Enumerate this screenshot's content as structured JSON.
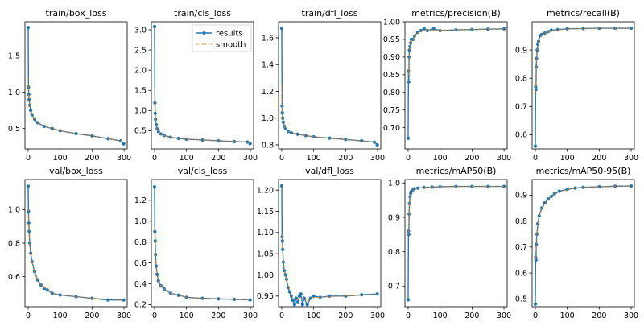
{
  "legend": {
    "results": "results",
    "smooth": "smooth"
  },
  "colors": {
    "results": "#1f77b4",
    "smooth": "#ff7f0e"
  },
  "chart_data": [
    {
      "type": "line",
      "title": "train/box_loss",
      "xlim": [
        -10,
        310
      ],
      "ylim": [
        0.22,
        1.97
      ],
      "xticks": [
        0,
        100,
        200,
        300
      ],
      "yticks": [
        0.5,
        1.0,
        1.5
      ],
      "ytick_labels": [
        "0.5",
        "1.0",
        "1.5"
      ],
      "x": [
        0,
        1,
        2,
        3,
        5,
        8,
        12,
        20,
        30,
        50,
        75,
        100,
        150,
        200,
        250,
        290,
        299
      ],
      "results": [
        1.89,
        1.07,
        0.97,
        0.9,
        0.82,
        0.75,
        0.69,
        0.63,
        0.58,
        0.53,
        0.5,
        0.47,
        0.43,
        0.4,
        0.36,
        0.33,
        0.29
      ],
      "smooth": [
        1.2,
        1.06,
        0.97,
        0.9,
        0.82,
        0.75,
        0.69,
        0.63,
        0.58,
        0.53,
        0.5,
        0.47,
        0.43,
        0.4,
        0.36,
        0.33,
        0.31
      ]
    },
    {
      "type": "line",
      "title": "train/cls_loss",
      "legend": "top-right",
      "xlim": [
        -10,
        310
      ],
      "ylim": [
        0.05,
        3.2
      ],
      "xticks": [
        0,
        100,
        200,
        300
      ],
      "yticks": [
        0.5,
        1.0,
        1.5,
        2.0,
        2.5,
        3.0
      ],
      "ytick_labels": [
        "0.5",
        "1.0",
        "1.5",
        "2.0",
        "2.5",
        "3.0"
      ],
      "x": [
        0,
        1,
        2,
        3,
        5,
        8,
        12,
        20,
        30,
        50,
        75,
        100,
        150,
        200,
        250,
        290,
        299
      ],
      "results": [
        3.08,
        1.19,
        0.93,
        0.78,
        0.65,
        0.55,
        0.48,
        0.42,
        0.38,
        0.34,
        0.31,
        0.29,
        0.27,
        0.25,
        0.23,
        0.22,
        0.18
      ],
      "smooth": [
        1.55,
        1.15,
        0.92,
        0.78,
        0.65,
        0.55,
        0.48,
        0.42,
        0.38,
        0.34,
        0.31,
        0.29,
        0.27,
        0.25,
        0.23,
        0.22,
        0.2
      ]
    },
    {
      "type": "line",
      "title": "train/dfl_loss",
      "xlim": [
        -10,
        310
      ],
      "ylim": [
        0.77,
        1.72
      ],
      "xticks": [
        0,
        100,
        200,
        300
      ],
      "yticks": [
        0.8,
        1.0,
        1.2,
        1.4,
        1.6
      ],
      "ytick_labels": [
        "0.8",
        "1.0",
        "1.2",
        "1.4",
        "1.6"
      ],
      "x": [
        0,
        1,
        2,
        3,
        5,
        8,
        12,
        20,
        30,
        50,
        75,
        100,
        150,
        200,
        250,
        290,
        299
      ],
      "results": [
        1.67,
        1.09,
        1.04,
        1.0,
        0.97,
        0.94,
        0.92,
        0.9,
        0.89,
        0.88,
        0.87,
        0.86,
        0.85,
        0.84,
        0.83,
        0.82,
        0.8
      ],
      "smooth": [
        1.25,
        1.08,
        1.03,
        1.0,
        0.97,
        0.94,
        0.92,
        0.9,
        0.89,
        0.88,
        0.87,
        0.86,
        0.85,
        0.84,
        0.83,
        0.82,
        0.81
      ]
    },
    {
      "type": "line",
      "title": "metrics/precision(B)",
      "xlim": [
        -10,
        310
      ],
      "ylim": [
        0.64,
        1.0
      ],
      "xticks": [
        0,
        100,
        200,
        300
      ],
      "yticks": [
        0.7,
        0.75,
        0.8,
        0.85,
        0.9,
        0.95,
        1.0
      ],
      "ytick_labels": [
        "0.70",
        "0.75",
        "0.80",
        "0.85",
        "0.90",
        "0.95",
        "1.00"
      ],
      "x": [
        0,
        1,
        2,
        3,
        4,
        6,
        8,
        10,
        15,
        20,
        30,
        40,
        50,
        60,
        80,
        100,
        150,
        200,
        250,
        300
      ],
      "results": [
        0.67,
        0.86,
        0.83,
        0.9,
        0.92,
        0.93,
        0.94,
        0.95,
        0.95,
        0.96,
        0.97,
        0.975,
        0.98,
        0.975,
        0.98,
        0.975,
        0.977,
        0.978,
        0.979,
        0.98
      ],
      "smooth": [
        0.85,
        0.86,
        0.86,
        0.89,
        0.91,
        0.93,
        0.94,
        0.945,
        0.95,
        0.96,
        0.968,
        0.972,
        0.976,
        0.976,
        0.977,
        0.976,
        0.977,
        0.978,
        0.979,
        0.98
      ]
    },
    {
      "type": "line",
      "title": "metrics/recall(B)",
      "xlim": [
        -10,
        310
      ],
      "ylim": [
        0.55,
        1.0
      ],
      "xticks": [
        0,
        100,
        200,
        300
      ],
      "yticks": [
        0.6,
        0.7,
        0.8,
        0.9
      ],
      "ytick_labels": [
        "0.6",
        "0.7",
        "0.8",
        "0.9"
      ],
      "x": [
        0,
        1,
        2,
        3,
        4,
        6,
        8,
        10,
        15,
        20,
        30,
        40,
        50,
        70,
        100,
        150,
        200,
        250,
        300
      ],
      "results": [
        0.56,
        0.77,
        0.76,
        0.84,
        0.87,
        0.9,
        0.92,
        0.93,
        0.95,
        0.955,
        0.96,
        0.965,
        0.97,
        0.972,
        0.975,
        0.976,
        0.977,
        0.977,
        0.977
      ],
      "smooth": [
        0.75,
        0.76,
        0.77,
        0.82,
        0.86,
        0.89,
        0.915,
        0.93,
        0.945,
        0.953,
        0.96,
        0.964,
        0.968,
        0.971,
        0.974,
        0.976,
        0.977,
        0.977,
        0.977
      ]
    },
    {
      "type": "line",
      "title": "val/box_loss",
      "xlim": [
        -10,
        310
      ],
      "ylim": [
        0.42,
        1.18
      ],
      "xticks": [
        0,
        100,
        200,
        300
      ],
      "yticks": [
        0.6,
        0.8,
        1.0
      ],
      "ytick_labels": [
        "0.6",
        "0.8",
        "1.0"
      ],
      "x": [
        0,
        1,
        2,
        3,
        5,
        8,
        12,
        20,
        30,
        40,
        50,
        60,
        75,
        100,
        150,
        200,
        250,
        299
      ],
      "results": [
        1.14,
        0.99,
        0.92,
        0.87,
        0.8,
        0.74,
        0.69,
        0.63,
        0.58,
        0.55,
        0.53,
        0.52,
        0.5,
        0.49,
        0.48,
        0.47,
        0.46,
        0.46
      ],
      "smooth": [
        1.0,
        0.97,
        0.91,
        0.86,
        0.8,
        0.74,
        0.69,
        0.63,
        0.58,
        0.55,
        0.535,
        0.52,
        0.5,
        0.49,
        0.48,
        0.47,
        0.465,
        0.46
      ]
    },
    {
      "type": "line",
      "title": "val/cls_loss",
      "xlim": [
        -10,
        310
      ],
      "ylim": [
        0.18,
        1.4
      ],
      "xticks": [
        0,
        100,
        200,
        300
      ],
      "yticks": [
        0.2,
        0.4,
        0.6,
        0.8,
        1.0,
        1.2
      ],
      "ytick_labels": [
        "0.2",
        "0.4",
        "0.6",
        "0.8",
        "1.0",
        "1.2"
      ],
      "x": [
        0,
        1,
        2,
        3,
        5,
        8,
        12,
        20,
        30,
        50,
        75,
        100,
        150,
        200,
        250,
        299
      ],
      "results": [
        1.33,
        0.9,
        0.81,
        0.68,
        0.57,
        0.49,
        0.43,
        0.38,
        0.35,
        0.31,
        0.29,
        0.27,
        0.26,
        0.255,
        0.25,
        0.245
      ],
      "smooth": [
        0.95,
        0.88,
        0.8,
        0.68,
        0.57,
        0.49,
        0.43,
        0.38,
        0.35,
        0.31,
        0.29,
        0.27,
        0.26,
        0.255,
        0.25,
        0.245
      ]
    },
    {
      "type": "line",
      "title": "val/dfl_loss",
      "xlim": [
        -10,
        310
      ],
      "ylim": [
        0.925,
        1.225
      ],
      "xticks": [
        0,
        100,
        200,
        300
      ],
      "yticks": [
        0.95,
        1.0,
        1.05,
        1.1,
        1.15,
        1.2
      ],
      "ytick_labels": [
        "0.95",
        "1.00",
        "1.05",
        "1.10",
        "1.15",
        "1.20"
      ],
      "x": [
        0,
        1,
        2,
        3,
        5,
        8,
        12,
        15,
        20,
        25,
        30,
        35,
        40,
        45,
        50,
        55,
        60,
        65,
        70,
        80,
        90,
        100,
        120,
        150,
        200,
        250,
        299
      ],
      "results": [
        1.21,
        1.09,
        1.08,
        1.06,
        1.03,
        1.01,
        1.0,
        0.99,
        0.97,
        0.96,
        0.95,
        0.94,
        0.93,
        0.945,
        0.935,
        0.95,
        0.955,
        0.93,
        0.945,
        0.93,
        0.945,
        0.95,
        0.947,
        0.95,
        0.95,
        0.953,
        0.955
      ],
      "smooth": [
        1.1,
        1.09,
        1.075,
        1.06,
        1.03,
        1.01,
        1.0,
        0.99,
        0.975,
        0.965,
        0.955,
        0.947,
        0.942,
        0.942,
        0.94,
        0.943,
        0.946,
        0.942,
        0.943,
        0.94,
        0.943,
        0.946,
        0.947,
        0.949,
        0.95,
        0.952,
        0.954
      ]
    },
    {
      "type": "line",
      "title": "metrics/mAP50(B)",
      "xlim": [
        -10,
        310
      ],
      "ylim": [
        0.64,
        1.01
      ],
      "xticks": [
        0,
        100,
        200,
        300
      ],
      "yticks": [
        0.7,
        0.8,
        0.9,
        1.0
      ],
      "ytick_labels": [
        "0.7",
        "0.8",
        "0.9",
        "1.0"
      ],
      "x": [
        0,
        1,
        2,
        3,
        4,
        6,
        8,
        10,
        15,
        20,
        30,
        50,
        75,
        100,
        150,
        200,
        250,
        300
      ],
      "results": [
        0.66,
        0.86,
        0.85,
        0.91,
        0.94,
        0.96,
        0.97,
        0.975,
        0.98,
        0.983,
        0.985,
        0.987,
        0.988,
        0.989,
        0.99,
        0.99,
        0.99,
        0.99
      ],
      "smooth": [
        0.85,
        0.86,
        0.86,
        0.9,
        0.93,
        0.955,
        0.965,
        0.972,
        0.978,
        0.982,
        0.985,
        0.987,
        0.988,
        0.989,
        0.99,
        0.99,
        0.99,
        0.99
      ]
    },
    {
      "type": "line",
      "title": "metrics/mAP50-95(B)",
      "xlim": [
        -10,
        310
      ],
      "ylim": [
        0.47,
        0.96
      ],
      "xticks": [
        0,
        100,
        200,
        300
      ],
      "yticks": [
        0.5,
        0.6,
        0.7,
        0.8,
        0.9
      ],
      "ytick_labels": [
        "0.5",
        "0.6",
        "0.7",
        "0.8",
        "0.9"
      ],
      "x": [
        0,
        1,
        2,
        3,
        5,
        8,
        12,
        20,
        30,
        40,
        50,
        60,
        75,
        100,
        125,
        150,
        200,
        250,
        300
      ],
      "results": [
        0.48,
        0.66,
        0.65,
        0.71,
        0.75,
        0.79,
        0.82,
        0.85,
        0.87,
        0.885,
        0.895,
        0.905,
        0.915,
        0.922,
        0.927,
        0.93,
        0.932,
        0.934,
        0.935
      ],
      "smooth": [
        0.65,
        0.655,
        0.66,
        0.7,
        0.745,
        0.785,
        0.815,
        0.845,
        0.868,
        0.883,
        0.894,
        0.903,
        0.913,
        0.921,
        0.926,
        0.929,
        0.932,
        0.934,
        0.935
      ]
    }
  ]
}
